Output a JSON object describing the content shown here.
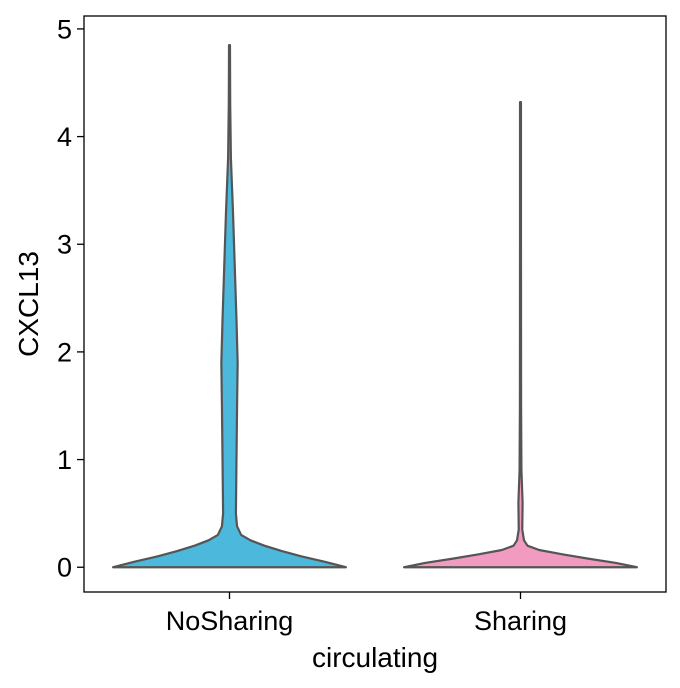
{
  "chart_data": {
    "type": "violin",
    "xlabel": "circulating",
    "ylabel": "CXCL13",
    "categories": [
      "NoSharing",
      "Sharing"
    ],
    "ylim": [
      -0.23,
      5.12
    ],
    "yticks": [
      0,
      1,
      2,
      3,
      4,
      5
    ],
    "grid": false,
    "legend": "none",
    "series": [
      {
        "category": "NoSharing",
        "color": "#4bb8dc",
        "max": 4.85,
        "density_profile": [
          {
            "y": 0.0,
            "half_width": 1.0
          },
          {
            "y": 0.05,
            "half_width": 0.82
          },
          {
            "y": 0.1,
            "half_width": 0.62
          },
          {
            "y": 0.15,
            "half_width": 0.45
          },
          {
            "y": 0.2,
            "half_width": 0.3
          },
          {
            "y": 0.25,
            "half_width": 0.18
          },
          {
            "y": 0.3,
            "half_width": 0.1
          },
          {
            "y": 0.38,
            "half_width": 0.065
          },
          {
            "y": 0.5,
            "half_width": 0.055
          },
          {
            "y": 1.0,
            "half_width": 0.06
          },
          {
            "y": 1.5,
            "half_width": 0.065
          },
          {
            "y": 1.9,
            "half_width": 0.07
          },
          {
            "y": 2.3,
            "half_width": 0.06
          },
          {
            "y": 2.8,
            "half_width": 0.045
          },
          {
            "y": 3.3,
            "half_width": 0.03
          },
          {
            "y": 3.8,
            "half_width": 0.012
          },
          {
            "y": 4.3,
            "half_width": 0.006
          },
          {
            "y": 4.85,
            "half_width": 0.004
          }
        ]
      },
      {
        "category": "Sharing",
        "color": "#f29bc1",
        "max": 4.32,
        "density_profile": [
          {
            "y": 0.0,
            "half_width": 1.0
          },
          {
            "y": 0.04,
            "half_width": 0.82
          },
          {
            "y": 0.08,
            "half_width": 0.58
          },
          {
            "y": 0.12,
            "half_width": 0.36
          },
          {
            "y": 0.16,
            "half_width": 0.16
          },
          {
            "y": 0.2,
            "half_width": 0.06
          },
          {
            "y": 0.25,
            "half_width": 0.03
          },
          {
            "y": 0.35,
            "half_width": 0.015
          },
          {
            "y": 0.6,
            "half_width": 0.018
          },
          {
            "y": 0.9,
            "half_width": 0.008
          },
          {
            "y": 1.5,
            "half_width": 0.005
          },
          {
            "y": 3.0,
            "half_width": 0.004
          },
          {
            "y": 4.32,
            "half_width": 0.004
          }
        ]
      }
    ]
  }
}
